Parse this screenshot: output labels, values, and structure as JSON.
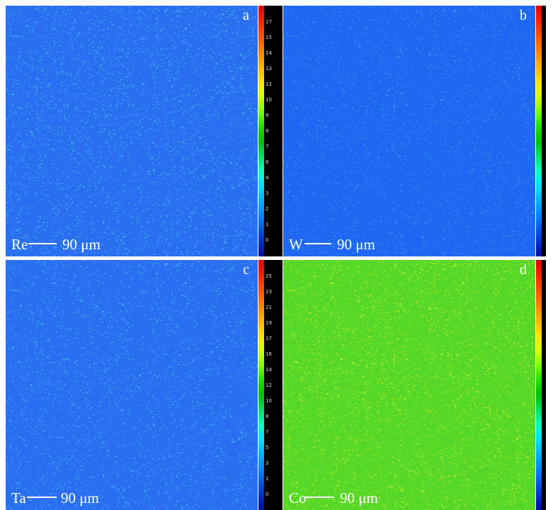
{
  "panels": [
    {
      "id": "a",
      "letter": "a",
      "element": "Re",
      "scale": "90 μm",
      "base": "#2a6df0",
      "speckle": [
        "#36a8f0",
        "#4cc8e8",
        "#2f8ef0"
      ],
      "density": 0.55,
      "ticks": [
        "17",
        "15",
        "14",
        "13",
        "12",
        "10",
        "9",
        "8",
        "7",
        "6",
        "4",
        "3",
        "2",
        "1",
        "0"
      ]
    },
    {
      "id": "b",
      "letter": "b",
      "element": "W",
      "scale": "90 μm",
      "base": "#1f66f2",
      "speckle": [
        "#3a9ef2",
        "#2a86f2"
      ],
      "density": 0.12,
      "ticks": []
    },
    {
      "id": "c",
      "letter": "c",
      "element": "Ta",
      "scale": "90 μm",
      "base": "#2a6df0",
      "speckle": [
        "#36a8f0",
        "#4cc8e8",
        "#2f8ef0"
      ],
      "density": 0.5,
      "ticks": [
        "25",
        "23",
        "21",
        "19",
        "17",
        "16",
        "14",
        "12",
        "10",
        "8",
        "7",
        "5",
        "3",
        "1",
        "0"
      ]
    },
    {
      "id": "d",
      "letter": "d",
      "element": "Co",
      "scale": "90 μm",
      "base": "#56d828",
      "speckle": [
        "#c8f020",
        "#e8f030",
        "#38c040",
        "#a0e820"
      ],
      "density": 0.65,
      "ticks": []
    }
  ]
}
